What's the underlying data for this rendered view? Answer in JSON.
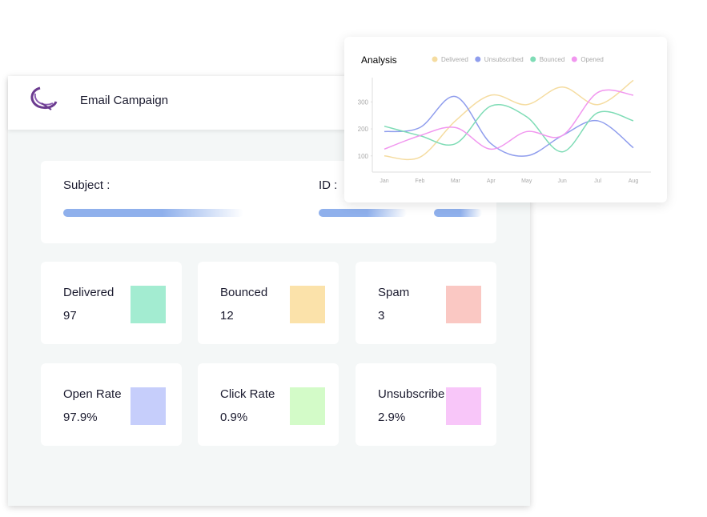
{
  "header": {
    "title": "Email Campaign"
  },
  "form": {
    "subject": "Subject :",
    "id": "ID :"
  },
  "cards": [
    {
      "label": "Delivered",
      "value": "97",
      "color": "#a3ecd1"
    },
    {
      "label": "Bounced",
      "value": "12",
      "color": "#fbe2aa"
    },
    {
      "label": "Spam",
      "value": "3",
      "color": "#fac8c3"
    },
    {
      "label": "Open Rate",
      "value": "97.9%",
      "color": "#c6cefb"
    },
    {
      "label": "Click Rate",
      "value": "0.9%",
      "color": "#d3fbc8"
    },
    {
      "label": "Unsubscribe",
      "value": "2.9%",
      "color": "#f8c6f9"
    }
  ],
  "chart_data": {
    "type": "line",
    "title": "Analysis",
    "categories": [
      "Jan",
      "Feb",
      "Mar",
      "Apr",
      "May",
      "Jun",
      "Jul",
      "Aug"
    ],
    "series": [
      {
        "name": "Delivered",
        "color": "#f5dca0",
        "values": [
          100,
          95,
          230,
          325,
          290,
          355,
          290,
          380
        ]
      },
      {
        "name": "Unsubscribed",
        "color": "#8f9ded",
        "values": [
          190,
          205,
          320,
          145,
          100,
          175,
          230,
          130
        ]
      },
      {
        "name": "Bounced",
        "color": "#7fdcb6",
        "values": [
          210,
          175,
          145,
          285,
          245,
          115,
          260,
          230
        ]
      },
      {
        "name": "Opened",
        "color": "#f197ef",
        "values": [
          125,
          175,
          205,
          125,
          190,
          175,
          335,
          325
        ]
      }
    ],
    "ylim": [
      40,
      390
    ],
    "yticks": [
      100,
      200,
      300
    ]
  }
}
